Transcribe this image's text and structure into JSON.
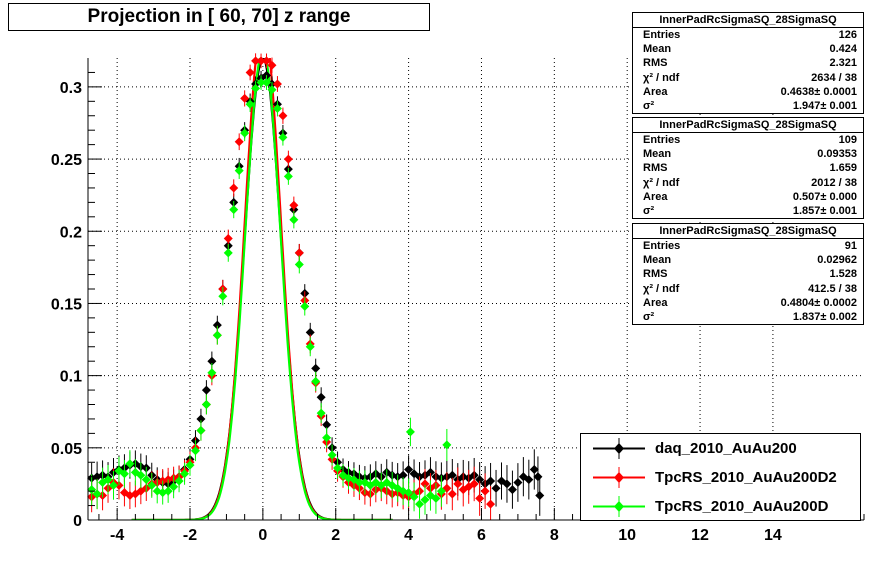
{
  "title": "Projection in [  60,  70] z range",
  "stats_boxes": [
    {
      "name": "InnerPadRcSigmaSQ_28SigmaSQ",
      "rows": [
        {
          "label": "Entries",
          "value": "126"
        },
        {
          "label": "Mean",
          "value": "0.424"
        },
        {
          "label": "RMS",
          "value": "2.321"
        },
        {
          "label": "χ² / ndf",
          "value": "2634 / 38"
        },
        {
          "label": "Area",
          "value": "0.4638± 0.0001"
        },
        {
          "label": "σ²",
          "value": "1.947± 0.001"
        }
      ]
    },
    {
      "name": "InnerPadRcSigmaSQ_28SigmaSQ",
      "rows": [
        {
          "label": "Entries",
          "value": "109"
        },
        {
          "label": "Mean",
          "value": "0.09353"
        },
        {
          "label": "RMS",
          "value": "1.659"
        },
        {
          "label": "χ² / ndf",
          "value": "2012 / 38"
        },
        {
          "label": "Area",
          "value": "0.507± 0.000"
        },
        {
          "label": "σ²",
          "value": "1.857± 0.001"
        }
      ]
    },
    {
      "name": "InnerPadRcSigmaSQ_28SigmaSQ",
      "rows": [
        {
          "label": "Entries",
          "value": "91"
        },
        {
          "label": "Mean",
          "value": "0.02962"
        },
        {
          "label": "RMS",
          "value": "1.528"
        },
        {
          "label": "χ² / ndf",
          "value": "412.5 / 38"
        },
        {
          "label": "Area",
          "value": "0.4804± 0.0002"
        },
        {
          "label": "σ²",
          "value": "1.837± 0.002"
        }
      ]
    }
  ],
  "chart_data": {
    "type": "scatter",
    "title": "Projection in [  60,  70] z range",
    "xlim": [
      -4.8,
      16.5
    ],
    "ylim": [
      0,
      0.32
    ],
    "x_ticks": [
      -4,
      -2,
      0,
      2,
      4,
      6,
      8,
      10,
      12,
      14
    ],
    "x_tick_labels": [
      "-4",
      "-2",
      "0",
      "2",
      "4",
      "6",
      "8",
      "10",
      "12",
      "14"
    ],
    "y_ticks": [
      0,
      0.05,
      0.1,
      0.15,
      0.2,
      0.25,
      0.3
    ],
    "y_tick_labels": [
      "0",
      "0.05",
      "0.1",
      "0.15",
      "0.2",
      "0.25",
      "0.3"
    ],
    "grid": true,
    "legend_position": "bottom-right",
    "series": [
      {
        "name": "daq_2010_AuAu200",
        "color": "#000000",
        "fit": {
          "area": 0.4638,
          "sigma2": 1.947,
          "mean": 0.0
        },
        "points": [
          [
            -4.7,
            0.029
          ],
          [
            -4.55,
            0.03
          ],
          [
            -4.4,
            0.031
          ],
          [
            -4.25,
            0.03
          ],
          [
            -4.1,
            0.033
          ],
          [
            -3.95,
            0.035
          ],
          [
            -3.8,
            0.036
          ],
          [
            -3.65,
            0.038
          ],
          [
            -3.5,
            0.039
          ],
          [
            -3.35,
            0.037
          ],
          [
            -3.2,
            0.036
          ],
          [
            -3.05,
            0.031
          ],
          [
            -2.9,
            0.028
          ],
          [
            -2.75,
            0.026
          ],
          [
            -2.6,
            0.025
          ],
          [
            -2.45,
            0.027
          ],
          [
            -2.3,
            0.03
          ],
          [
            -2.15,
            0.035
          ],
          [
            -2.0,
            0.042
          ],
          [
            -1.85,
            0.055
          ],
          [
            -1.7,
            0.07
          ],
          [
            -1.55,
            0.09
          ],
          [
            -1.4,
            0.11
          ],
          [
            -1.25,
            0.135
          ],
          [
            -1.1,
            0.16
          ],
          [
            -0.95,
            0.19
          ],
          [
            -0.8,
            0.22
          ],
          [
            -0.65,
            0.245
          ],
          [
            -0.5,
            0.27
          ],
          [
            -0.35,
            0.29
          ],
          [
            -0.2,
            0.302
          ],
          [
            -0.05,
            0.306
          ],
          [
            0.1,
            0.308
          ],
          [
            0.25,
            0.302
          ],
          [
            0.4,
            0.288
          ],
          [
            0.55,
            0.268
          ],
          [
            0.7,
            0.243
          ],
          [
            0.85,
            0.215
          ],
          [
            1.0,
            0.185
          ],
          [
            1.15,
            0.157
          ],
          [
            1.3,
            0.13
          ],
          [
            1.45,
            0.105
          ],
          [
            1.6,
            0.085
          ],
          [
            1.75,
            0.066
          ],
          [
            1.9,
            0.05
          ],
          [
            2.05,
            0.04
          ],
          [
            2.2,
            0.035
          ],
          [
            2.35,
            0.033
          ],
          [
            2.5,
            0.032
          ],
          [
            2.65,
            0.03
          ],
          [
            2.8,
            0.029
          ],
          [
            2.95,
            0.03
          ],
          [
            3.1,
            0.032
          ],
          [
            3.25,
            0.03
          ],
          [
            3.4,
            0.033
          ],
          [
            3.55,
            0.031
          ],
          [
            3.7,
            0.03
          ],
          [
            3.85,
            0.031
          ],
          [
            4.0,
            0.035
          ],
          [
            4.15,
            0.032
          ],
          [
            4.3,
            0.03
          ],
          [
            4.45,
            0.031
          ],
          [
            4.6,
            0.033
          ],
          [
            4.75,
            0.03
          ],
          [
            4.9,
            0.029
          ],
          [
            5.05,
            0.03
          ],
          [
            5.2,
            0.031
          ],
          [
            5.35,
            0.028
          ],
          [
            5.5,
            0.03
          ],
          [
            5.65,
            0.029
          ],
          [
            5.8,
            0.031
          ],
          [
            5.95,
            0.028
          ],
          [
            6.1,
            0.025
          ],
          [
            6.25,
            0.027
          ],
          [
            6.4,
            0.022
          ],
          [
            6.55,
            0.027
          ],
          [
            6.7,
            0.025
          ],
          [
            6.85,
            0.021
          ],
          [
            7.0,
            0.026
          ],
          [
            7.15,
            0.03
          ],
          [
            7.3,
            0.028
          ],
          [
            7.45,
            0.035
          ],
          [
            7.6,
            0.017
          ],
          [
            7.55,
            0.03
          ]
        ]
      },
      {
        "name": "TpcRS_2010_AuAu200D2",
        "color": "#ff0000",
        "fit": {
          "area": 0.507,
          "sigma2": 1.857,
          "mean": 0.0
        },
        "points": [
          [
            -4.7,
            0.016
          ],
          [
            -4.55,
            0.018
          ],
          [
            -4.4,
            0.017
          ],
          [
            -4.25,
            0.022
          ],
          [
            -4.1,
            0.026
          ],
          [
            -3.95,
            0.024
          ],
          [
            -3.8,
            0.019
          ],
          [
            -3.65,
            0.017
          ],
          [
            -3.5,
            0.018
          ],
          [
            -3.35,
            0.02
          ],
          [
            -3.2,
            0.022
          ],
          [
            -3.05,
            0.025
          ],
          [
            -2.9,
            0.026
          ],
          [
            -2.75,
            0.027
          ],
          [
            -2.6,
            0.028
          ],
          [
            -2.45,
            0.029
          ],
          [
            -2.3,
            0.03
          ],
          [
            -2.15,
            0.034
          ],
          [
            -2.0,
            0.04
          ],
          [
            -1.85,
            0.05
          ],
          [
            -1.7,
            0.062
          ],
          [
            -1.55,
            0.08
          ],
          [
            -1.4,
            0.1
          ],
          [
            -1.25,
            0.128
          ],
          [
            -1.1,
            0.16
          ],
          [
            -0.95,
            0.195
          ],
          [
            -0.8,
            0.23
          ],
          [
            -0.65,
            0.262
          ],
          [
            -0.5,
            0.292
          ],
          [
            -0.35,
            0.31
          ],
          [
            -0.2,
            0.318
          ],
          [
            -0.05,
            0.318
          ],
          [
            0.1,
            0.318
          ],
          [
            0.25,
            0.315
          ],
          [
            0.4,
            0.302
          ],
          [
            0.55,
            0.28
          ],
          [
            0.7,
            0.25
          ],
          [
            0.85,
            0.218
          ],
          [
            1.0,
            0.185
          ],
          [
            1.15,
            0.152
          ],
          [
            1.3,
            0.122
          ],
          [
            1.45,
            0.095
          ],
          [
            1.6,
            0.072
          ],
          [
            1.75,
            0.054
          ],
          [
            1.9,
            0.042
          ],
          [
            2.05,
            0.034
          ],
          [
            2.2,
            0.03
          ],
          [
            2.35,
            0.026
          ],
          [
            2.5,
            0.024
          ],
          [
            2.65,
            0.022
          ],
          [
            2.8,
            0.019
          ],
          [
            2.95,
            0.018
          ],
          [
            3.1,
            0.021
          ],
          [
            3.25,
            0.022
          ],
          [
            3.4,
            0.02
          ],
          [
            3.55,
            0.018
          ],
          [
            3.7,
            0.019
          ],
          [
            3.85,
            0.017
          ],
          [
            4.0,
            0.016
          ],
          [
            4.15,
            0.018
          ],
          [
            4.3,
            0.02
          ],
          [
            4.45,
            0.025
          ],
          [
            4.6,
            0.022
          ],
          [
            4.75,
            0.024
          ],
          [
            4.9,
            0.018
          ],
          [
            5.05,
            0.022
          ],
          [
            5.2,
            0.018
          ],
          [
            5.35,
            0.025
          ],
          [
            5.5,
            0.021
          ],
          [
            5.65,
            0.023
          ],
          [
            5.8,
            0.025
          ],
          [
            5.95,
            0.015
          ],
          [
            6.1,
            0.02
          ],
          [
            6.25,
            0.011
          ]
        ]
      },
      {
        "name": "TpcRS_2010_AuAu200D",
        "color": "#00ff00",
        "fit": {
          "area": 0.4804,
          "sigma2": 1.837,
          "mean": 0.0
        },
        "points": [
          [
            -4.7,
            0.021
          ],
          [
            -4.55,
            0.018
          ],
          [
            -4.4,
            0.026
          ],
          [
            -4.25,
            0.028
          ],
          [
            -4.1,
            0.024
          ],
          [
            -3.95,
            0.034
          ],
          [
            -3.8,
            0.032
          ],
          [
            -3.65,
            0.039
          ],
          [
            -3.5,
            0.033
          ],
          [
            -3.35,
            0.031
          ],
          [
            -3.2,
            0.028
          ],
          [
            -3.05,
            0.024
          ],
          [
            -2.9,
            0.02
          ],
          [
            -2.75,
            0.019
          ],
          [
            -2.6,
            0.02
          ],
          [
            -2.45,
            0.023
          ],
          [
            -2.3,
            0.027
          ],
          [
            -2.15,
            0.032
          ],
          [
            -2.0,
            0.038
          ],
          [
            -1.85,
            0.048
          ],
          [
            -1.7,
            0.062
          ],
          [
            -1.55,
            0.08
          ],
          [
            -1.4,
            0.102
          ],
          [
            -1.25,
            0.128
          ],
          [
            -1.1,
            0.155
          ],
          [
            -0.95,
            0.185
          ],
          [
            -0.8,
            0.215
          ],
          [
            -0.65,
            0.242
          ],
          [
            -0.5,
            0.268
          ],
          [
            -0.35,
            0.288
          ],
          [
            -0.2,
            0.299
          ],
          [
            -0.05,
            0.303
          ],
          [
            0.1,
            0.303
          ],
          [
            0.25,
            0.298
          ],
          [
            0.4,
            0.285
          ],
          [
            0.55,
            0.265
          ],
          [
            0.7,
            0.238
          ],
          [
            0.85,
            0.208
          ],
          [
            1.0,
            0.177
          ],
          [
            1.15,
            0.148
          ],
          [
            1.3,
            0.12
          ],
          [
            1.45,
            0.096
          ],
          [
            1.6,
            0.074
          ],
          [
            1.75,
            0.057
          ],
          [
            1.9,
            0.045
          ],
          [
            2.05,
            0.036
          ],
          [
            2.2,
            0.031
          ],
          [
            2.35,
            0.029
          ],
          [
            2.5,
            0.028
          ],
          [
            2.65,
            0.026
          ],
          [
            2.8,
            0.026
          ],
          [
            2.95,
            0.024
          ],
          [
            3.1,
            0.026
          ],
          [
            3.25,
            0.024
          ],
          [
            3.4,
            0.026
          ],
          [
            3.55,
            0.024
          ],
          [
            3.7,
            0.022
          ],
          [
            3.85,
            0.02
          ],
          [
            4.0,
            0.019
          ],
          [
            4.15,
            0.016
          ],
          [
            4.3,
            0.011
          ],
          [
            4.45,
            0.014
          ],
          [
            4.6,
            0.017
          ],
          [
            4.75,
            0.015
          ],
          [
            4.9,
            0.02
          ],
          [
            5.05,
            0.052
          ],
          [
            4.05,
            0.061
          ]
        ]
      }
    ]
  }
}
